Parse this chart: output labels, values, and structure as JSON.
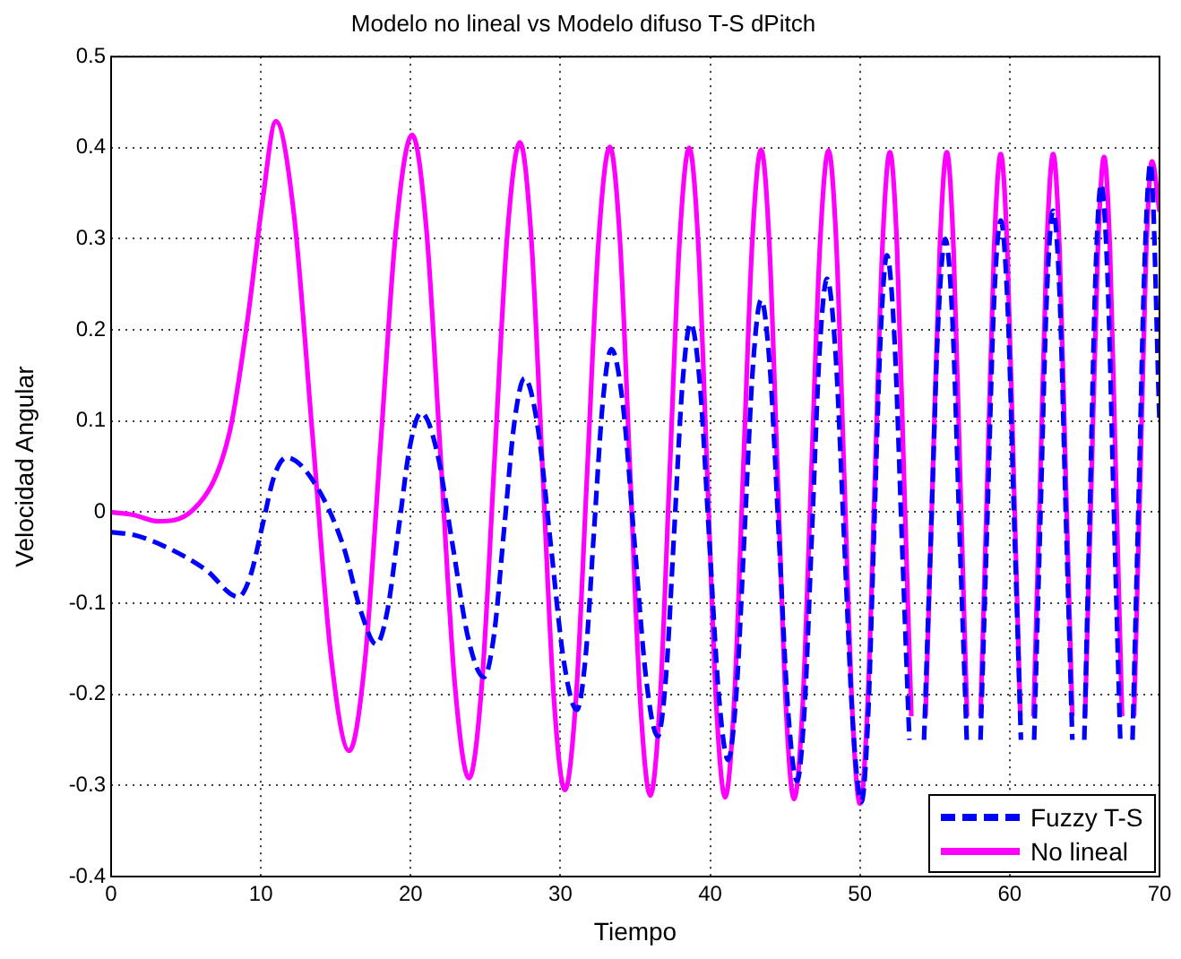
{
  "chart_data": {
    "type": "line",
    "title": "Modelo no lineal vs Modelo difuso T-S dPitch",
    "xlabel": "Tiempo",
    "ylabel": "Velocidad Angular",
    "xlim": [
      0,
      70
    ],
    "xticks": [
      0,
      10,
      20,
      30,
      40,
      50,
      60,
      70
    ],
    "ylim": [
      -0.4,
      0.5
    ],
    "yticks": [
      -0.4,
      -0.3,
      -0.2,
      -0.1,
      0,
      0.1,
      0.2,
      0.3,
      0.4,
      0.5
    ],
    "grid": true,
    "legend": "bottom right",
    "marker": "none",
    "series": [
      {
        "name": "Fuzzy T-S",
        "color": "#0000ff",
        "line_style": "dashed",
        "x": [
          0,
          1.5,
          3.5,
          6.3,
          8.5,
          9.3,
          10.1,
          10.9,
          11.7,
          13.5,
          15.5,
          16.7,
          17.7,
          18.45,
          19.2,
          19.95,
          20.7,
          21.75,
          22.8,
          23.85,
          24.9,
          25.58,
          26.25,
          26.93,
          27.6,
          28.48,
          29.35,
          30.23,
          31.1,
          31.68,
          32.25,
          32.83,
          33.4,
          34.18,
          34.95,
          35.73,
          36.5,
          37.05,
          37.6,
          38.15,
          38.7,
          39.33,
          39.95,
          40.58,
          41.2,
          41.75,
          42.3,
          42.85,
          43.4,
          44.0,
          44.6,
          45.2,
          45.8,
          46.3,
          46.8,
          47.3,
          47.8,
          48.38,
          48.95,
          49.53,
          50.1,
          50.53,
          50.95,
          51.38,
          51.8,
          52.3,
          52.8,
          53.3,
          53.8,
          54.28,
          54.75,
          55.23,
          55.7,
          56.18,
          56.65,
          57.13,
          57.6,
          58.05,
          58.5,
          58.95,
          59.4,
          59.85,
          60.3,
          60.75,
          61.2,
          61.63,
          62.05,
          62.48,
          62.9,
          63.33,
          63.75,
          64.18,
          64.6,
          64.98,
          65.35,
          65.73,
          66.1,
          66.53,
          66.95,
          67.38,
          67.8,
          68.2,
          68.6,
          69.0,
          69.4,
          70
        ],
        "values": [
          -0.022,
          -0.025,
          -0.037,
          -0.063,
          -0.093,
          -0.07,
          -0.015,
          0.04,
          0.06,
          0.034,
          -0.037,
          -0.11,
          -0.145,
          -0.108,
          -0.018,
          0.072,
          0.109,
          0.067,
          -0.036,
          -0.139,
          -0.181,
          -0.133,
          -0.017,
          0.099,
          0.147,
          0.094,
          -0.035,
          -0.164,
          -0.217,
          -0.159,
          -0.019,
          0.121,
          0.179,
          0.117,
          -0.034,
          -0.184,
          -0.246,
          -0.18,
          -0.02,
          0.141,
          0.207,
          0.137,
          -0.033,
          -0.202,
          -0.272,
          -0.198,
          -0.02,
          0.159,
          0.233,
          0.156,
          -0.031,
          -0.218,
          -0.295,
          -0.215,
          -0.02,
          0.176,
          0.256,
          0.172,
          -0.031,
          -0.234,
          -0.318,
          -0.23,
          -0.018,
          0.194,
          0.282,
          0.192,
          -0.029,
          -0.25,
          null,
          -0.25,
          -0.02,
          0.21,
          0.3,
          0.21,
          -0.02,
          -0.25,
          null,
          -0.25,
          -0.01,
          0.23,
          0.32,
          0.23,
          -0.01,
          -0.25,
          null,
          -0.25,
          -0.005,
          0.24,
          0.331,
          0.24,
          -0.005,
          -0.25,
          null,
          -0.25,
          0.005,
          0.26,
          0.36,
          0.26,
          0.005,
          -0.25,
          null,
          -0.25,
          0.01,
          0.27,
          0.383,
          0.1
        ]
      },
      {
        "name": "No lineal",
        "color": "#ff00ff",
        "line_style": "solid",
        "x": [
          0,
          1.5,
          3.1,
          5.5,
          7.9,
          9.1,
          10.1,
          11.0,
          12.2,
          13.45,
          14.7,
          15.9,
          16.95,
          18.0,
          19.05,
          20.1,
          21.05,
          22.0,
          22.95,
          23.9,
          24.75,
          25.6,
          26.45,
          27.3,
          28.05,
          28.8,
          29.55,
          30.3,
          31.05,
          31.8,
          32.55,
          33.3,
          33.98,
          34.65,
          35.33,
          36.0,
          36.65,
          37.3,
          37.95,
          38.6,
          39.2,
          39.8,
          40.4,
          41.0,
          41.6,
          42.2,
          42.8,
          43.4,
          43.95,
          44.5,
          45.05,
          45.6,
          46.18,
          46.75,
          47.33,
          47.9,
          48.43,
          48.95,
          49.48,
          50.0,
          50.5,
          51.0,
          51.5,
          52.0,
          52.48,
          52.95,
          53.43,
          53.9,
          54.38,
          54.85,
          55.33,
          55.8,
          56.25,
          56.7,
          57.15,
          57.6,
          58.05,
          58.5,
          58.95,
          59.4,
          59.84,
          60.28,
          60.71,
          61.15,
          61.59,
          62.03,
          62.46,
          62.9,
          63.33,
          63.75,
          64.18,
          64.6,
          65.03,
          65.45,
          65.88,
          66.3,
          66.7,
          67.1,
          67.5,
          67.9,
          68.3,
          68.7,
          69.1,
          69.5,
          70
        ],
        "values": [
          0,
          -0.003,
          -0.01,
          0.003,
          0.087,
          0.21,
          0.34,
          0.429,
          0.328,
          0.084,
          -0.161,
          -0.262,
          -0.163,
          0.076,
          0.315,
          0.414,
          0.311,
          0.061,
          -0.189,
          -0.292,
          -0.19,
          0.057,
          0.304,
          0.406,
          0.302,
          0.05,
          -0.201,
          -0.305,
          -0.202,
          0.048,
          0.298,
          0.401,
          0.297,
          0.045,
          -0.207,
          -0.311,
          -0.207,
          0.045,
          0.296,
          0.4,
          0.296,
          0.044,
          -0.209,
          -0.313,
          -0.209,
          0.043,
          0.294,
          0.398,
          0.294,
          0.042,
          -0.211,
          -0.315,
          -0.211,
          0.041,
          0.293,
          0.397,
          0.292,
          0.039,
          -0.215,
          -0.32,
          -0.216,
          0.038,
          0.291,
          0.395,
          0.289,
          0.033,
          -0.224,
          null,
          -0.224,
          0.033,
          0.289,
          0.395,
          0.289,
          0.033,
          -0.224,
          null,
          -0.224,
          0.032,
          0.287,
          0.393,
          0.287,
          0.032,
          -0.224,
          null,
          -0.224,
          0.032,
          0.287,
          0.393,
          0.287,
          0.032,
          -0.224,
          null,
          -0.224,
          0.03,
          0.285,
          0.39,
          0.285,
          0.03,
          -0.224,
          null,
          -0.224,
          0.028,
          0.28,
          0.385,
          0.33
        ]
      }
    ]
  }
}
